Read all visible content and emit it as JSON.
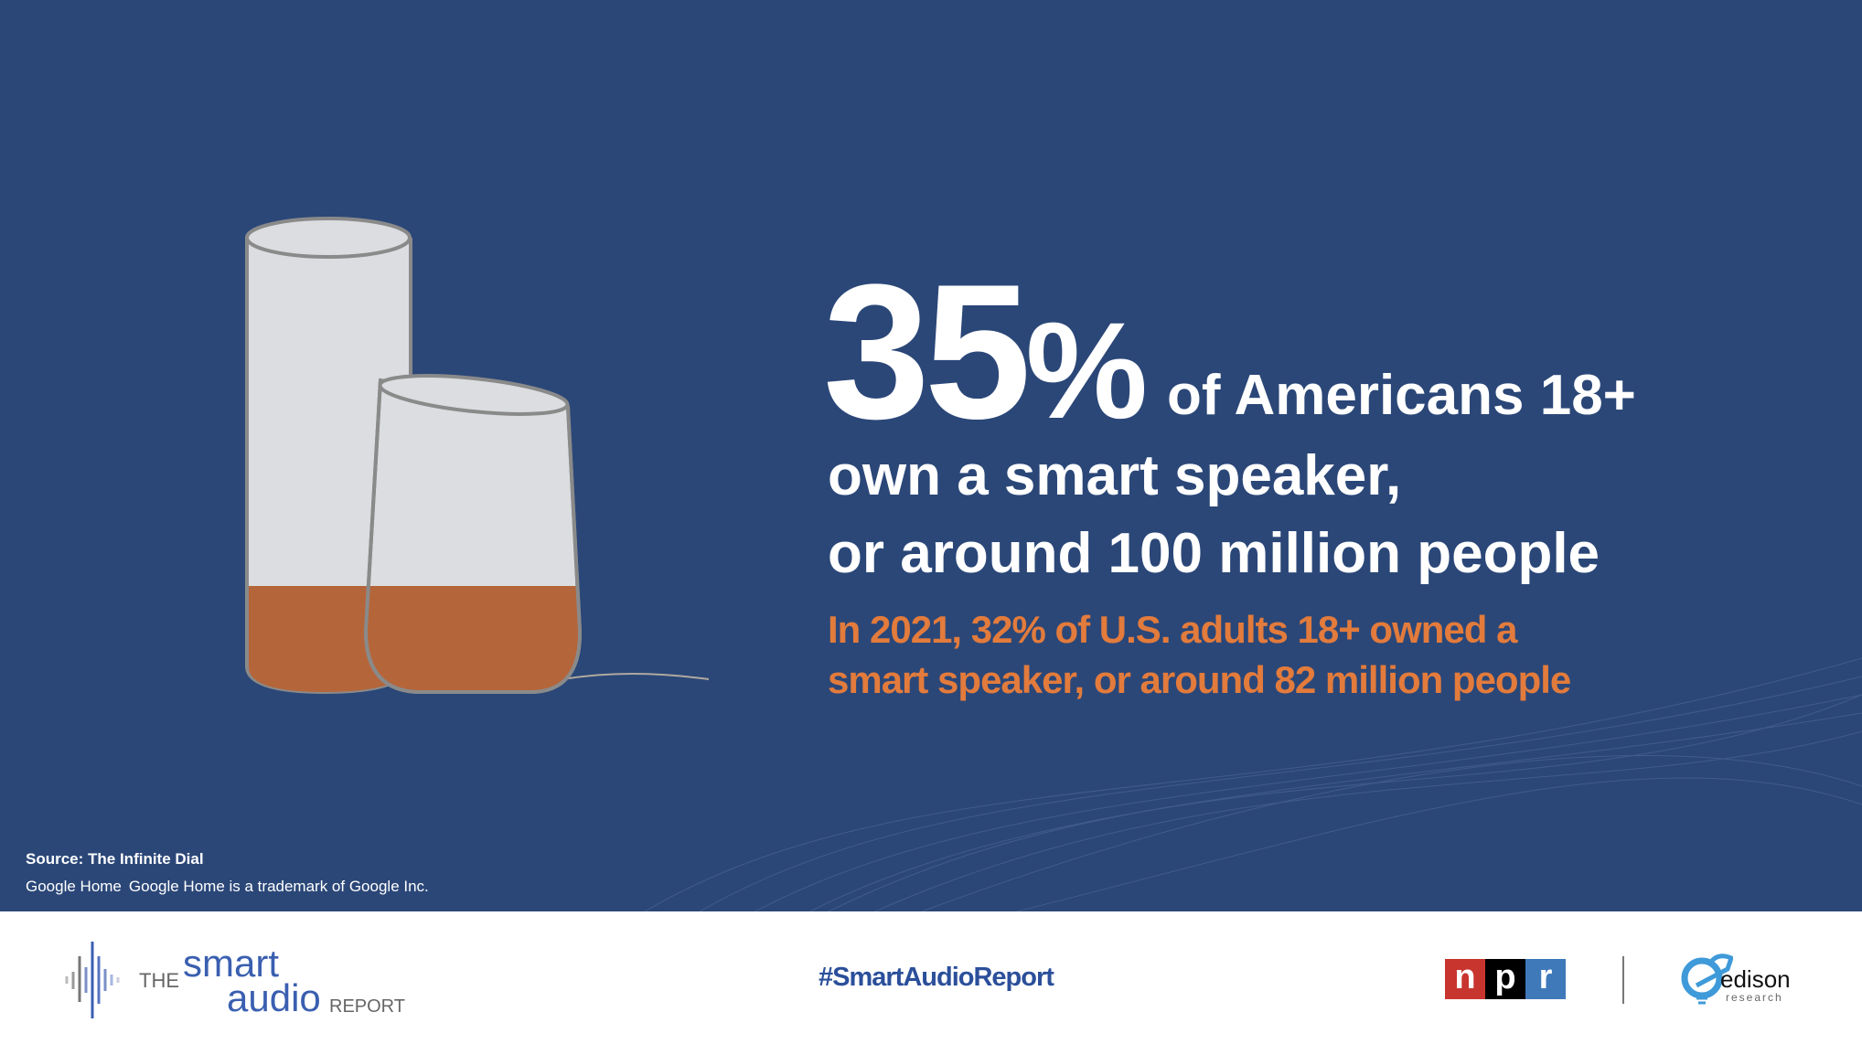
{
  "headline": {
    "number": "35",
    "percent": "%",
    "line1": "of Americans 18+",
    "line2": "own a smart speaker,",
    "line3": "or around 100 million people"
  },
  "subtext": {
    "line1": "In 2021, 32% of U.S. adults 18+ owned a",
    "line2": "smart speaker, or around 82 million people"
  },
  "source": "Source: The Infinite Dial",
  "trademark": {
    "logo": "Google Home",
    "text": "Google Home is a trademark of Google Inc."
  },
  "footer": {
    "logo": {
      "the": "THE",
      "smart": "smart",
      "audio": "audio",
      "report": "REPORT"
    },
    "hashtag": "#SmartAudioReport",
    "npr": [
      "n",
      "p",
      "r"
    ],
    "edison": {
      "name": "edison",
      "sub": "research"
    }
  },
  "colors": {
    "background": "#2b4778",
    "accent": "#e27b3c",
    "speaker_fill": "#b5653a"
  }
}
